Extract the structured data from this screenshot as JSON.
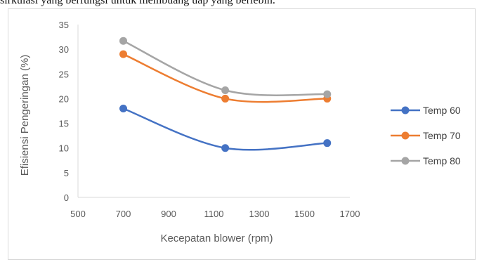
{
  "page": {
    "top_text": "sirkulasi yang berfungsi untuk membuang uap yang berlebih."
  },
  "chart_data": {
    "type": "line",
    "title": "",
    "xlabel": "Kecepatan blower (rpm)",
    "ylabel": "Efisiensi Pengeringan (%)",
    "xlim": [
      500,
      1700
    ],
    "ylim": [
      0,
      35
    ],
    "xticks": [
      "500",
      "700",
      "900",
      "1100",
      "1300",
      "1500",
      "1700"
    ],
    "yticks": [
      "0",
      "5",
      "10",
      "15",
      "20",
      "25",
      "30",
      "35"
    ],
    "x": [
      700,
      1150,
      1600
    ],
    "series": [
      {
        "name": "Temp 60",
        "color": "#4472C4",
        "values": [
          18,
          10,
          11
        ]
      },
      {
        "name": "Temp 70",
        "color": "#ED7D31",
        "values": [
          29,
          20,
          20
        ]
      },
      {
        "name": "Temp 80",
        "color": "#A5A5A5",
        "values": [
          31.7,
          21.7,
          20.9
        ]
      }
    ],
    "grid": false,
    "legend": "right",
    "axis_color": "#d9d9d9"
  }
}
